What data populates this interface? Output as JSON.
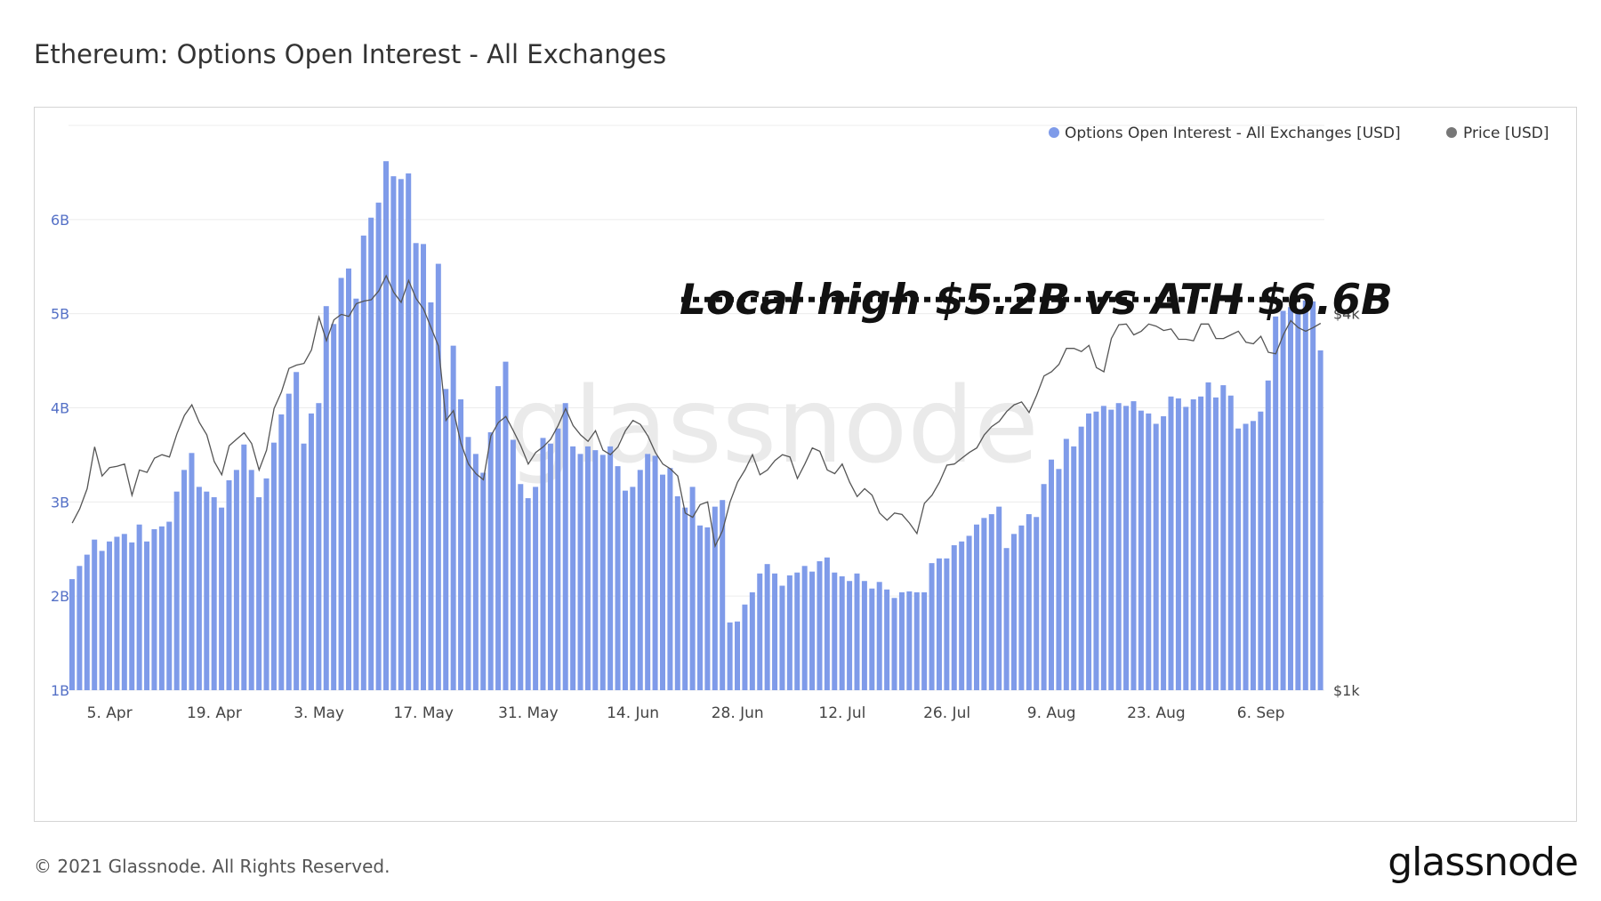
{
  "title": "Ethereum: Options Open Interest - All Exchanges",
  "footer": {
    "copyright": "© 2021 Glassnode. All Rights Reserved.",
    "logo": "glassnode"
  },
  "watermark": "glassnode",
  "annotation": {
    "text": "Local high $5.2B vs ATH $6.6B",
    "level_usd_billions": 5.15
  },
  "colors": {
    "bars": "#7f9be9",
    "price": "#555555",
    "axis_left": "#5470c6",
    "grid": "#ececec",
    "text": "#333333"
  },
  "chart_data": {
    "type": "bar",
    "title": "Ethereum: Options Open Interest - All Exchanges",
    "x_start": "2021-03-31",
    "x_end": "2021-09-07",
    "xticks": [
      "5. Apr",
      "19. Apr",
      "3. May",
      "17. May",
      "31. May",
      "14. Jun",
      "28. Jun",
      "12. Jul",
      "26. Jul",
      "9. Aug",
      "23. Aug",
      "6. Sep"
    ],
    "y_left": {
      "ticks": [
        "1B",
        "2B",
        "3B",
        "4B",
        "5B",
        "6B"
      ],
      "range": [
        1,
        7
      ],
      "unit": "USD billions"
    },
    "y_right": {
      "ticks": [
        "$1k",
        "$4k"
      ],
      "scale": "log"
    },
    "legend": {
      "placement": "top-right",
      "entries": [
        "Options Open Interest - All Exchanges [USD]",
        "Price [USD]"
      ]
    },
    "grid": true,
    "series": [
      {
        "name": "Options Open Interest - All Exchanges [USD]",
        "type": "bar",
        "values": [
          2.18,
          2.32,
          2.44,
          2.6,
          2.48,
          2.58,
          2.63,
          2.66,
          2.57,
          2.76,
          2.58,
          2.71,
          2.74,
          2.79,
          3.11,
          3.34,
          3.52,
          3.16,
          3.11,
          3.05,
          2.94,
          3.23,
          3.34,
          3.61,
          3.34,
          3.05,
          3.25,
          3.63,
          3.93,
          4.15,
          4.38,
          3.62,
          3.94,
          4.05,
          5.08,
          4.89,
          5.38,
          5.48,
          5.16,
          5.83,
          6.02,
          6.18,
          6.62,
          6.46,
          6.43,
          6.49,
          5.75,
          5.74,
          5.12,
          5.53,
          4.2,
          4.66,
          4.09,
          3.69,
          3.51,
          3.31,
          3.74,
          4.23,
          4.49,
          3.66,
          3.19,
          3.04,
          3.16,
          3.68,
          3.62,
          3.78,
          4.05,
          3.59,
          3.51,
          3.59,
          3.55,
          3.5,
          3.59,
          3.38,
          3.12,
          3.16,
          3.34,
          3.51,
          3.49,
          3.29,
          3.36,
          3.06,
          2.94,
          3.16,
          2.75,
          2.73,
          2.95,
          3.02,
          1.72,
          1.73,
          1.91,
          2.04,
          2.24,
          2.34,
          2.24,
          2.11,
          2.22,
          2.25,
          2.32,
          2.26,
          2.37,
          2.41,
          2.25,
          2.21,
          2.16,
          2.24,
          2.16,
          2.08,
          2.15,
          2.07,
          1.98,
          2.04,
          2.05,
          2.04,
          2.04,
          2.35,
          2.4,
          2.4,
          2.54,
          2.58,
          2.64,
          2.76,
          2.83,
          2.87,
          2.95,
          2.51,
          2.66,
          2.75,
          2.87,
          2.84,
          3.19,
          3.45,
          3.35,
          3.67,
          3.59,
          3.8,
          3.94,
          3.96,
          4.02,
          3.98,
          4.05,
          4.02,
          4.07,
          3.97,
          3.94,
          3.83,
          3.91,
          4.12,
          4.1,
          4.01,
          4.09,
          4.12,
          4.27,
          4.11,
          4.24,
          4.13,
          3.78,
          3.83,
          3.86,
          3.96,
          4.29,
          4.97,
          5.03,
          5.07,
          5.05,
          5.14,
          5.13,
          4.61
        ]
      },
      {
        "name": "Price [USD]",
        "type": "line",
        "values": [
          1850,
          1950,
          2100,
          2450,
          2200,
          2270,
          2280,
          2300,
          2050,
          2250,
          2230,
          2350,
          2380,
          2360,
          2570,
          2750,
          2860,
          2680,
          2560,
          2320,
          2210,
          2460,
          2520,
          2580,
          2480,
          2250,
          2420,
          2820,
          3000,
          3270,
          3310,
          3330,
          3500,
          3950,
          3620,
          3910,
          3990,
          3960,
          4150,
          4190,
          4210,
          4350,
          4600,
          4330,
          4170,
          4520,
          4230,
          4070,
          3800,
          3550,
          2700,
          2800,
          2480,
          2300,
          2220,
          2170,
          2550,
          2680,
          2740,
          2600,
          2460,
          2300,
          2400,
          2450,
          2520,
          2650,
          2820,
          2650,
          2560,
          2500,
          2600,
          2420,
          2380,
          2450,
          2600,
          2700,
          2660,
          2550,
          2400,
          2300,
          2260,
          2200,
          1920,
          1890,
          1980,
          2000,
          1700,
          1800,
          2000,
          2150,
          2250,
          2380,
          2210,
          2250,
          2330,
          2380,
          2360,
          2180,
          2300,
          2440,
          2410,
          2250,
          2220,
          2300,
          2150,
          2040,
          2100,
          2050,
          1920,
          1870,
          1920,
          1910,
          1850,
          1780,
          1990,
          2050,
          2150,
          2290,
          2300,
          2350,
          2400,
          2440,
          2560,
          2640,
          2690,
          2790,
          2860,
          2890,
          2780,
          2960,
          3180,
          3230,
          3320,
          3520,
          3520,
          3480,
          3560,
          3280,
          3230,
          3650,
          3840,
          3850,
          3700,
          3750,
          3850,
          3820,
          3760,
          3780,
          3640,
          3640,
          3620,
          3850,
          3850,
          3650,
          3650,
          3700,
          3750,
          3600,
          3580,
          3680,
          3470,
          3450,
          3700,
          3900,
          3800,
          3750,
          3800,
          3860,
          3940,
          3830,
          3560,
          4550,
          4530,
          4680,
          4890,
          4720,
          4780,
          4880,
          4750,
          4680,
          4800,
          3900,
          4000
        ]
      }
    ]
  }
}
